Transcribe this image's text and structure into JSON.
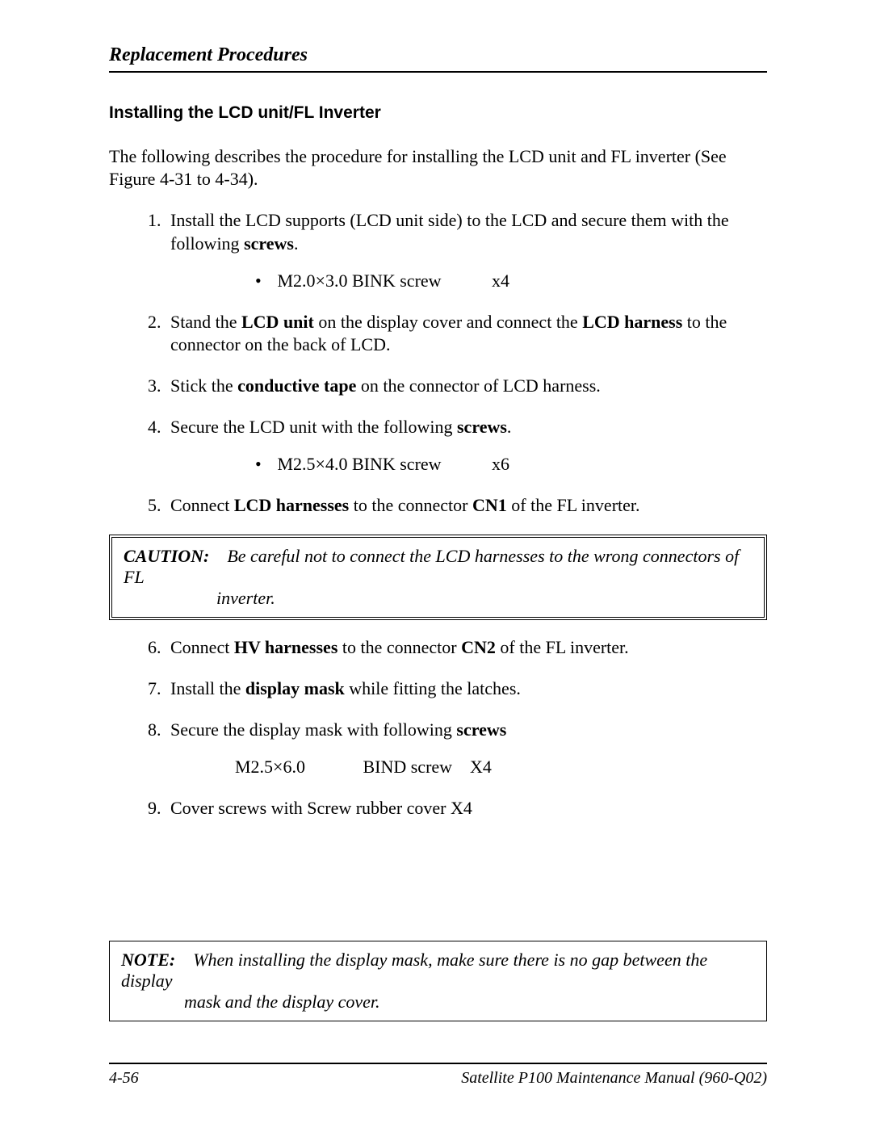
{
  "header": {
    "title": "Replacement Procedures"
  },
  "section_title": "Installing the LCD unit/FL Inverter",
  "intro": "The following describes the procedure for installing the LCD unit and FL inverter (See Figure 4-31 to 4-34).",
  "steps": {
    "s1_pre": "Install the LCD supports (LCD unit side) to the LCD and secure them with the following ",
    "s1_bold": "screws",
    "s1_post": ".",
    "s1_screw_spec": "M2.0×3.0  BINK   screw",
    "s1_screw_qty": "x4",
    "s2_pre": "Stand the ",
    "s2_b1": "LCD unit",
    "s2_mid": " on the display cover and connect the ",
    "s2_b2": "LCD harness",
    "s2_post": " to the connector on the back of LCD.",
    "s3_pre": "Stick the ",
    "s3_b": "conductive tape",
    "s3_post": " on the connector of LCD harness.",
    "s4_pre": "Secure the LCD unit with the following ",
    "s4_b": "screws",
    "s4_post": ".",
    "s4_screw_spec": "M2.5×4.0  BINK screw",
    "s4_screw_qty": "x6",
    "s5_pre": "Connect ",
    "s5_b1": "LCD harnesses",
    "s5_mid": " to the connector ",
    "s5_b2": "CN1",
    "s5_post": " of the FL inverter.",
    "s6_pre": "Connect ",
    "s6_b1": "HV harnesses",
    "s6_mid": " to the connector ",
    "s6_b2": "CN2",
    "s6_post": " of the FL inverter.",
    "s7_pre": "Install the ",
    "s7_b": "display mask",
    "s7_post": " while fitting the latches.",
    "s8_pre": "Secure the display mask with following ",
    "s8_b": "screws",
    "s8_screw_line": "M2.5×6.0             BIND screw    X4",
    "s9": "Cover screws with  Screw rubber cover    X4"
  },
  "caution": {
    "lead": "CAUTION:",
    "line1": "Be careful not to connect the LCD harnesses to the wrong connectors of FL",
    "line2": "inverter."
  },
  "note": {
    "lead": "NOTE:",
    "line1": "When installing the display mask, make sure there is no gap between the display",
    "line2": "mask and the display cover."
  },
  "footer": {
    "page": "4-56",
    "manual": "Satellite P100  Maintenance Manual (960-Q02)"
  }
}
